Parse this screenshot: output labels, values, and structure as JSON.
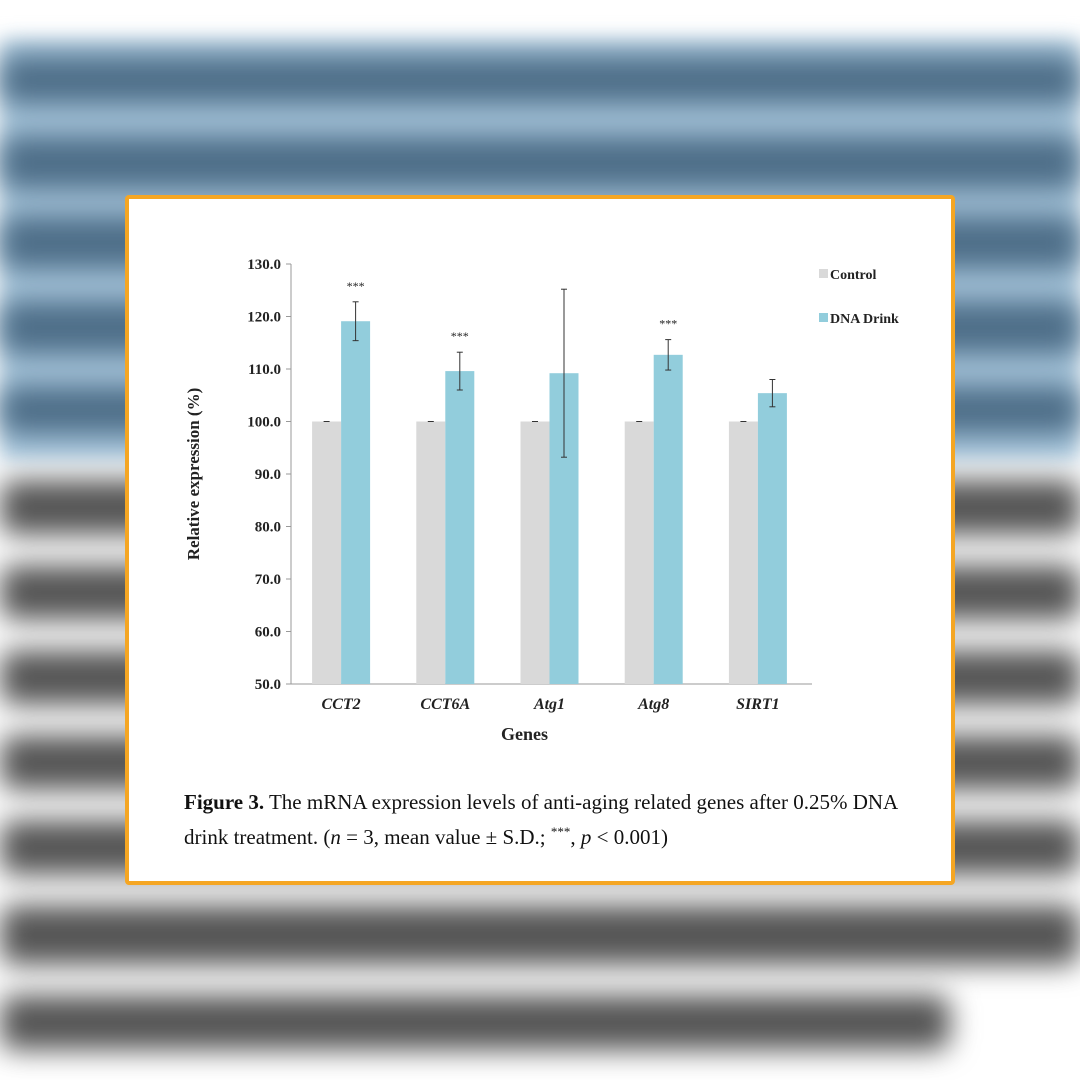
{
  "chart_data": {
    "type": "bar",
    "xlabel": "Genes",
    "ylabel": "Relative expression (%)",
    "ylim": [
      50,
      130
    ],
    "yticks": [
      "130.0",
      "120.0",
      "110.0",
      "100.0",
      "90.0",
      "80.0",
      "70.0",
      "60.0",
      "50.0"
    ],
    "categories": [
      "CCT2",
      "CCT6A",
      "Atg1",
      "Atg8",
      "SIRT1"
    ],
    "series": [
      {
        "name": "Control",
        "color": "#d9d9d9",
        "values": [
          100,
          100,
          100,
          100,
          100
        ],
        "errors": [
          0,
          0,
          0,
          0,
          0
        ]
      },
      {
        "name": "DNA Drink",
        "color": "#92cddc",
        "values": [
          119.1,
          109.6,
          109.2,
          112.7,
          105.4
        ],
        "errors": [
          3.7,
          3.6,
          16.0,
          2.9,
          2.6
        ]
      }
    ],
    "annotations": [
      "***",
      "***",
      "",
      "***",
      ""
    ],
    "legend_placement": "top-right",
    "grid": false
  },
  "caption": {
    "label": "Figure 3.",
    "text1": " The mRNA expression levels of anti-aging related genes after 0.25% DNA drink treatment. (",
    "n": "n",
    "text2": " = 3, mean value ± S.D.; ",
    "stars": "***",
    "text3": ", ",
    "p": "p",
    "text4": " < 0.001)"
  },
  "colors": {
    "frame": "#f5a623"
  }
}
